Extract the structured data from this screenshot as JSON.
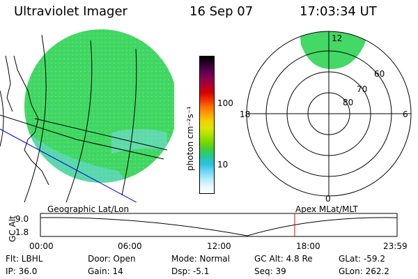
{
  "header": {
    "title": "Ultraviolet Imager",
    "date": "16 Sep 07",
    "time": "17:03:34 UT"
  },
  "colorbar": {
    "unit_label": "photon cm⁻²s⁻¹",
    "ticks": [
      "100",
      "10"
    ],
    "colors": [
      "#000000",
      "#2a0030",
      "#5a0050",
      "#8a0050",
      "#b00030",
      "#d40000",
      "#f03000",
      "#ff7000",
      "#ffa000",
      "#f4d000",
      "#d8e800",
      "#a8e000",
      "#70d800",
      "#40cc40",
      "#20c8a0",
      "#30c0e8",
      "#70d8f4",
      "#b0ecf8",
      "#e4f8fc",
      "#ffffff"
    ]
  },
  "left_map": {
    "caption": "Geographic Lat/Lon",
    "globe_color": "#44d866"
  },
  "polar_plot": {
    "caption": "Apex  MLat/MLT",
    "mlt_labels": {
      "top": "12",
      "bottom": "0",
      "left": "18",
      "right": "6"
    },
    "lat_labels": [
      "60",
      "70",
      "80"
    ]
  },
  "timeline": {
    "axis_label": "GC Alt",
    "y_ticks": [
      "9.0",
      "1.8"
    ],
    "x_ticks": [
      "00:00",
      "06:00",
      "12:00",
      "18:00",
      "23:59"
    ],
    "marker_color": "#e00000"
  },
  "footer": {
    "flt": "Flt: LBHL",
    "ip": "IP: 36.0",
    "door": "Door: Open",
    "gain": "Gain: 14",
    "mode": "Mode: Normal",
    "dsp": "Dsp:    -5.1",
    "gc_alt": "GC Alt: 4.8 Re",
    "seq": "Seq: 39",
    "glat": "GLat: -59.2",
    "glon": "GLon: 262.2"
  }
}
